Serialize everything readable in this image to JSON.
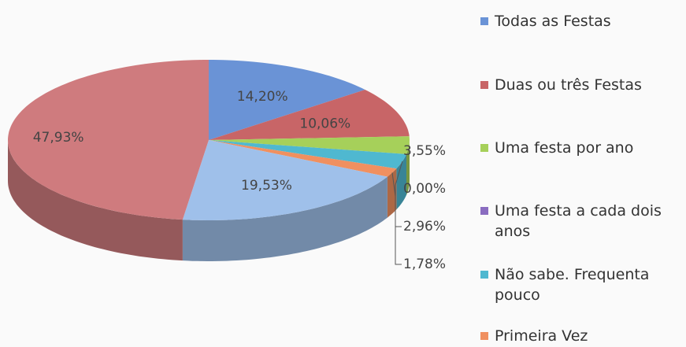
{
  "chart_data": {
    "type": "pie3d",
    "categories": [
      "Todas as Festas",
      "Duas ou três Festas",
      "Uma festa por ano",
      "Uma festa a cada dois anos",
      "Não sabe. Frequenta pouco",
      "Primeira Vez",
      null,
      null
    ],
    "values": [
      14.2,
      10.06,
      3.55,
      0.0,
      2.96,
      1.78,
      19.53,
      47.93
    ],
    "value_labels": [
      "14,20%",
      "10,06%",
      "3,55%",
      "0,00%",
      "2,96%",
      "1,78%",
      "19,53%",
      "47,93%"
    ],
    "colors": [
      "#6a93d6",
      "#c86567",
      "#a6d05a",
      "#8a6cc0",
      "#4fb8d0",
      "#f09060",
      "#9fc0ea",
      "#cf7b7e"
    ],
    "legend": "right"
  }
}
